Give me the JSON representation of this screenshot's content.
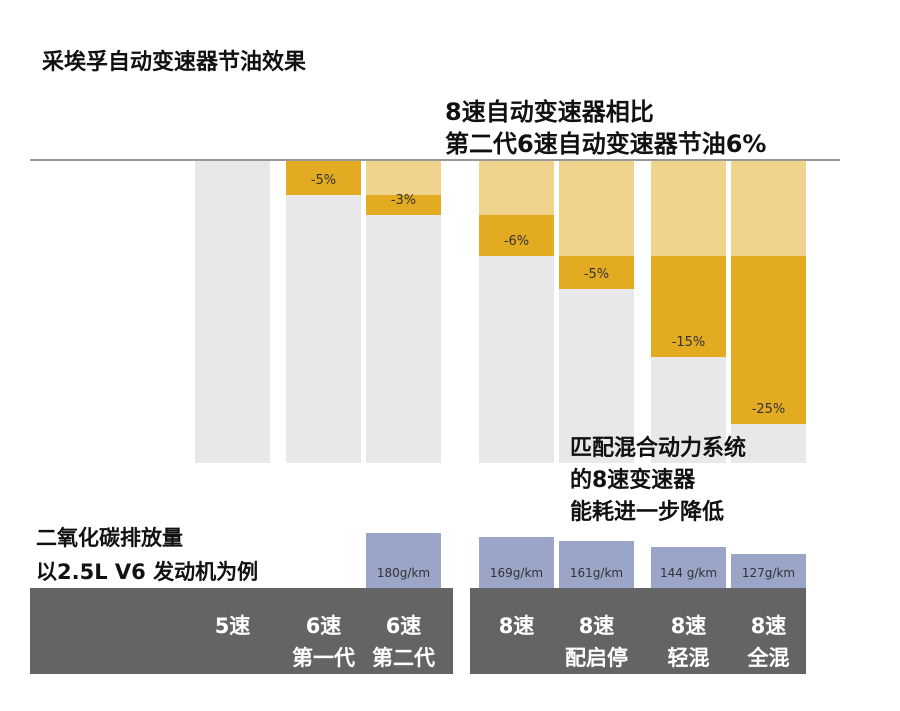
{
  "chart_data": {
    "type": "bar",
    "title": "采埃孚自动变速器节油效果",
    "annotations": [
      "8速自动变速器相比",
      "第二代6速自动变速器节油6%",
      "匹配混合动力系统",
      "的8速变速器",
      "能耗进一步降低"
    ],
    "co2_label": [
      "二氧化碳排放量",
      "以2.5L V6 发动机为例"
    ],
    "categories": [
      {
        "line1": "5速",
        "line2": ""
      },
      {
        "line1": "6速",
        "line2": "第一代"
      },
      {
        "line1": "6速",
        "line2": "第二代"
      },
      {
        "line1": "8速",
        "line2": ""
      },
      {
        "line1": "8速",
        "line2": "配启停"
      },
      {
        "line1": "8速",
        "line2": "轻混"
      },
      {
        "line1": "8速",
        "line2": "全混"
      }
    ],
    "fuel_saving_percent": [
      0,
      -5,
      -3,
      -6,
      -5,
      -15,
      -25
    ],
    "fuel_saving_labels": [
      "",
      "-5%",
      "-3%",
      "-6%",
      "-5%",
      "-15%",
      "-25%"
    ],
    "cumulative_saving_base_percent": [
      0,
      0,
      5,
      8,
      14,
      14,
      14
    ],
    "co2_g_per_km": [
      null,
      null,
      180,
      169,
      161,
      144,
      127
    ],
    "co2_labels": [
      "",
      "",
      "180g/km",
      "169g/km",
      "161g/km",
      "144 g/km",
      "127g/km"
    ],
    "colors": {
      "base": "#e8e7ea",
      "saving": "#e3ab22",
      "previous_saving": "#f0d48e",
      "co2": "#9aa5c8",
      "band": "#646464"
    }
  }
}
